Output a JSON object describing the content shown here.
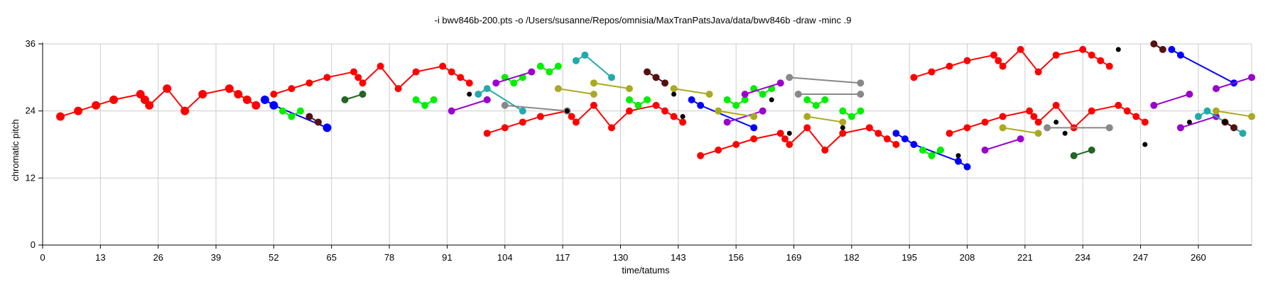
{
  "chart_data": {
    "type": "scatter",
    "title": "-i bwv846b-200.pts -o /Users/susanne/Repos/omnisia/MaxTranPatsJava/data/bwv846b -draw -minc .9",
    "xlabel": "time/tatums",
    "ylabel": "chromatic pitch",
    "xlim": [
      0,
      272
    ],
    "ylim": [
      0,
      36
    ],
    "xticks": [
      "0",
      "13",
      "26",
      "39",
      "52",
      "65",
      "78",
      "91",
      "104",
      "117",
      "130",
      "143",
      "156",
      "169",
      "182",
      "195",
      "208",
      "221",
      "234",
      "247",
      "260"
    ],
    "yticks": [
      "0",
      "12",
      "24",
      "36"
    ],
    "grid": true,
    "series": [
      {
        "color": "#ff0000",
        "size": "large",
        "points": [
          [
            4,
            23
          ],
          [
            8,
            24
          ],
          [
            12,
            25
          ],
          [
            16,
            26
          ],
          [
            22,
            27
          ],
          [
            23,
            26
          ],
          [
            24,
            25
          ],
          [
            28,
            28
          ],
          [
            32,
            24
          ],
          [
            36,
            27
          ],
          [
            42,
            28
          ],
          [
            44,
            27
          ],
          [
            46,
            26
          ],
          [
            48,
            25
          ]
        ]
      },
      {
        "color": "#ff0000",
        "size": "medium",
        "points": [
          [
            52,
            27
          ],
          [
            56,
            28
          ],
          [
            60,
            29
          ],
          [
            64,
            30
          ],
          [
            70,
            31
          ],
          [
            71,
            30
          ],
          [
            72,
            29
          ],
          [
            76,
            32
          ],
          [
            80,
            28
          ],
          [
            84,
            31
          ],
          [
            90,
            32
          ],
          [
            92,
            31
          ],
          [
            94,
            30
          ],
          [
            96,
            29
          ]
        ]
      },
      {
        "color": "#ff0000",
        "size": "medium",
        "points": [
          [
            100,
            20
          ],
          [
            104,
            21
          ],
          [
            108,
            22
          ],
          [
            112,
            23
          ],
          [
            118,
            24
          ],
          [
            119,
            23
          ],
          [
            120,
            22
          ],
          [
            124,
            25
          ],
          [
            128,
            21
          ],
          [
            132,
            24
          ],
          [
            138,
            25
          ],
          [
            140,
            24
          ],
          [
            142,
            23
          ],
          [
            144,
            22
          ]
        ]
      },
      {
        "color": "#ff0000",
        "size": "medium",
        "points": [
          [
            148,
            16
          ],
          [
            152,
            17
          ],
          [
            156,
            18
          ],
          [
            160,
            19
          ],
          [
            166,
            20
          ],
          [
            167,
            19
          ],
          [
            168,
            18
          ],
          [
            172,
            21
          ],
          [
            176,
            17
          ],
          [
            180,
            20
          ],
          [
            186,
            21
          ],
          [
            188,
            20
          ],
          [
            190,
            19
          ],
          [
            192,
            18
          ]
        ]
      },
      {
        "color": "#ff0000",
        "size": "medium",
        "points": [
          [
            196,
            30
          ],
          [
            200,
            31
          ],
          [
            204,
            32
          ],
          [
            208,
            33
          ],
          [
            214,
            34
          ],
          [
            215,
            33
          ],
          [
            216,
            32
          ],
          [
            220,
            35
          ],
          [
            224,
            31
          ],
          [
            228,
            34
          ],
          [
            234,
            35
          ],
          [
            236,
            34
          ],
          [
            238,
            33
          ],
          [
            240,
            32
          ]
        ]
      },
      {
        "color": "#ff0000",
        "size": "medium",
        "points": [
          [
            204,
            20
          ],
          [
            208,
            21
          ],
          [
            212,
            22
          ],
          [
            216,
            23
          ],
          [
            222,
            24
          ],
          [
            223,
            23
          ],
          [
            224,
            22
          ],
          [
            228,
            25
          ],
          [
            232,
            21
          ],
          [
            236,
            24
          ],
          [
            242,
            25
          ],
          [
            244,
            24
          ],
          [
            246,
            23
          ],
          [
            248,
            22
          ]
        ]
      },
      {
        "color": "#0000ff",
        "size": "large",
        "points": [
          [
            50,
            26
          ],
          [
            52,
            25
          ],
          [
            64,
            21
          ]
        ]
      },
      {
        "color": "#0000ff",
        "size": "medium",
        "points": [
          [
            146,
            26
          ],
          [
            148,
            25
          ],
          [
            160,
            21
          ]
        ]
      },
      {
        "color": "#0000ff",
        "size": "medium",
        "points": [
          [
            192,
            20
          ],
          [
            194,
            19
          ],
          [
            196,
            18
          ],
          [
            206,
            15
          ],
          [
            208,
            14
          ]
        ]
      },
      {
        "color": "#0000ff",
        "size": "medium",
        "points": [
          [
            254,
            35
          ],
          [
            256,
            34
          ],
          [
            268,
            29
          ]
        ]
      },
      {
        "color": "#00ee00",
        "size": "medium",
        "points": [
          [
            54,
            24
          ],
          [
            56,
            23
          ],
          [
            58,
            24
          ]
        ]
      },
      {
        "color": "#00ee00",
        "size": "medium",
        "points": [
          [
            84,
            26
          ],
          [
            86,
            25
          ],
          [
            88,
            26
          ]
        ]
      },
      {
        "color": "#00ee00",
        "size": "medium",
        "points": [
          [
            104,
            30
          ],
          [
            106,
            29
          ],
          [
            108,
            30
          ]
        ]
      },
      {
        "color": "#00ee00",
        "size": "medium",
        "points": [
          [
            112,
            32
          ],
          [
            114,
            31
          ],
          [
            116,
            32
          ]
        ]
      },
      {
        "color": "#00ee00",
        "size": "medium",
        "points": [
          [
            132,
            26
          ],
          [
            134,
            25
          ],
          [
            136,
            26
          ]
        ]
      },
      {
        "color": "#00ee00",
        "size": "medium",
        "points": [
          [
            154,
            26
          ],
          [
            156,
            25
          ],
          [
            158,
            26
          ]
        ]
      },
      {
        "color": "#00ee00",
        "size": "medium",
        "points": [
          [
            160,
            28
          ],
          [
            162,
            27
          ],
          [
            164,
            28
          ]
        ]
      },
      {
        "color": "#00ee00",
        "size": "medium",
        "points": [
          [
            172,
            26
          ],
          [
            174,
            25
          ],
          [
            176,
            26
          ]
        ]
      },
      {
        "color": "#00ee00",
        "size": "medium",
        "points": [
          [
            180,
            24
          ],
          [
            182,
            23
          ],
          [
            184,
            24
          ]
        ]
      },
      {
        "color": "#00ee00",
        "size": "medium",
        "points": [
          [
            198,
            17
          ],
          [
            200,
            16
          ],
          [
            202,
            17
          ]
        ]
      },
      {
        "color": "#9900cc",
        "size": "medium",
        "points": [
          [
            92,
            24
          ],
          [
            100,
            26
          ]
        ]
      },
      {
        "color": "#9900cc",
        "size": "medium",
        "points": [
          [
            102,
            29
          ],
          [
            110,
            31
          ]
        ]
      },
      {
        "color": "#9900cc",
        "size": "medium",
        "points": [
          [
            154,
            22
          ],
          [
            162,
            24
          ]
        ]
      },
      {
        "color": "#9900cc",
        "size": "medium",
        "points": [
          [
            158,
            27
          ],
          [
            166,
            29
          ]
        ]
      },
      {
        "color": "#9900cc",
        "size": "medium",
        "points": [
          [
            212,
            17
          ],
          [
            220,
            19
          ]
        ]
      },
      {
        "color": "#9900cc",
        "size": "medium",
        "points": [
          [
            250,
            25
          ],
          [
            258,
            27
          ]
        ]
      },
      {
        "color": "#9900cc",
        "size": "medium",
        "points": [
          [
            256,
            21
          ],
          [
            264,
            23
          ]
        ]
      },
      {
        "color": "#9900cc",
        "size": "medium",
        "points": [
          [
            264,
            28
          ],
          [
            272,
            30
          ]
        ]
      },
      {
        "color": "#22aaaa",
        "size": "medium",
        "points": [
          [
            98,
            27
          ],
          [
            100,
            28
          ],
          [
            108,
            24
          ]
        ]
      },
      {
        "color": "#22aaaa",
        "size": "medium",
        "points": [
          [
            120,
            33
          ],
          [
            122,
            34
          ],
          [
            128,
            30
          ]
        ]
      },
      {
        "color": "#22aaaa",
        "size": "medium",
        "points": [
          [
            260,
            23
          ],
          [
            262,
            24
          ],
          [
            270,
            20
          ]
        ]
      },
      {
        "color": "#aaaa22",
        "size": "medium",
        "points": [
          [
            116,
            28
          ],
          [
            124,
            27
          ]
        ]
      },
      {
        "color": "#aaaa22",
        "size": "medium",
        "points": [
          [
            124,
            29
          ],
          [
            132,
            28
          ]
        ]
      },
      {
        "color": "#aaaa22",
        "size": "medium",
        "points": [
          [
            142,
            28
          ],
          [
            150,
            27
          ]
        ]
      },
      {
        "color": "#aaaa22",
        "size": "medium",
        "points": [
          [
            152,
            24
          ],
          [
            160,
            23
          ]
        ]
      },
      {
        "color": "#aaaa22",
        "size": "medium",
        "points": [
          [
            172,
            23
          ],
          [
            180,
            22
          ]
        ]
      },
      {
        "color": "#aaaa22",
        "size": "medium",
        "points": [
          [
            216,
            21
          ],
          [
            224,
            20
          ]
        ]
      },
      {
        "color": "#aaaa22",
        "size": "medium",
        "points": [
          [
            264,
            24
          ],
          [
            272,
            23
          ]
        ]
      },
      {
        "color": "#888888",
        "size": "medium",
        "points": [
          [
            104,
            25
          ],
          [
            118,
            24
          ]
        ]
      },
      {
        "color": "#888888",
        "size": "medium",
        "points": [
          [
            168,
            30
          ],
          [
            184,
            29
          ]
        ]
      },
      {
        "color": "#888888",
        "size": "medium",
        "points": [
          [
            170,
            27
          ],
          [
            184,
            27
          ]
        ]
      },
      {
        "color": "#888888",
        "size": "medium",
        "points": [
          [
            226,
            21
          ],
          [
            240,
            21
          ]
        ]
      },
      {
        "color": "#226622",
        "size": "medium",
        "points": [
          [
            68,
            26
          ],
          [
            72,
            27
          ]
        ]
      },
      {
        "color": "#226622",
        "size": "medium",
        "points": [
          [
            232,
            16
          ],
          [
            236,
            17
          ]
        ]
      },
      {
        "color": "#551111",
        "size": "medium",
        "points": [
          [
            60,
            23
          ],
          [
            62,
            22
          ]
        ]
      },
      {
        "color": "#551111",
        "size": "medium",
        "points": [
          [
            136,
            31
          ],
          [
            138,
            30
          ],
          [
            140,
            29
          ]
        ]
      },
      {
        "color": "#551111",
        "size": "medium",
        "points": [
          [
            250,
            36
          ],
          [
            252,
            35
          ]
        ]
      },
      {
        "color": "#551111",
        "size": "medium",
        "points": [
          [
            266,
            22
          ],
          [
            268,
            21
          ]
        ]
      },
      {
        "color": "#000000",
        "size": "small",
        "points": [
          [
            96,
            27
          ],
          [
            118,
            24
          ],
          [
            142,
            27
          ],
          [
            144,
            23
          ],
          [
            164,
            26
          ],
          [
            168,
            20
          ],
          [
            180,
            21
          ],
          [
            206,
            16
          ],
          [
            228,
            22
          ],
          [
            230,
            20
          ],
          [
            242,
            35
          ],
          [
            248,
            18
          ],
          [
            258,
            22
          ],
          [
            266,
            22
          ]
        ]
      }
    ]
  }
}
